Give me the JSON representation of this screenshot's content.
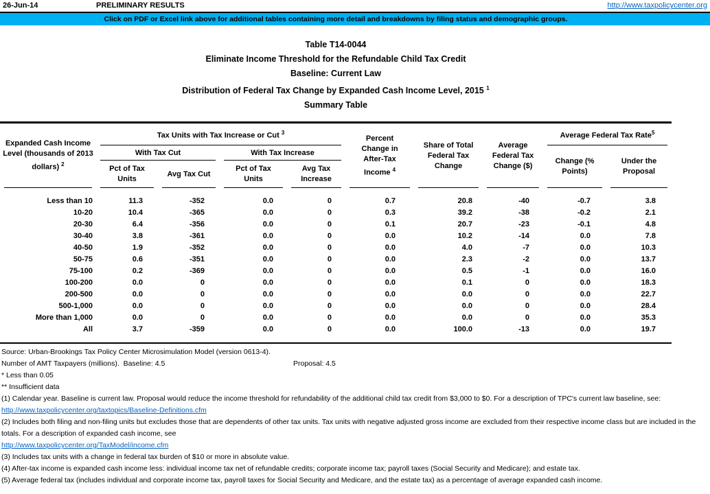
{
  "topbar": {
    "date": "26-Jun-14",
    "status": "PRELIMINARY RESULTS",
    "link": "http://www.taxpolicycenter.org"
  },
  "banner": {
    "text": "Click on PDF or Excel link above for additional tables containing more detail and breakdowns by filing status and demographic groups.",
    "bg_color": "#00B0F0"
  },
  "titles": {
    "line1": "Table T14-0044",
    "line2": "Eliminate Income Threshold for the Refundable Child Tax Credit",
    "line3": "Baseline: Current Law",
    "line4": "Distribution of Federal Tax Change by Expanded Cash Income Level, 2015",
    "line4_sup": "1",
    "line5": "Summary Table"
  },
  "table": {
    "col_income": {
      "text": "Expanded Cash Income Level (thousands of 2013 dollars)",
      "sup": "2"
    },
    "group_units": {
      "text": "Tax Units with Tax Increase or Cut",
      "sup": "3"
    },
    "group_cut": "With Tax Cut",
    "group_increase": "With Tax Increase",
    "col_pct_cut": "Pct of Tax Units",
    "col_avg_cut": "Avg Tax Cut",
    "col_pct_inc": "Pct of Tax Units",
    "col_avg_inc": "Avg Tax Increase",
    "col_pct_change": {
      "text": "Percent Change in After-Tax Income",
      "sup": "4"
    },
    "col_share": "Share of Total Federal Tax Change",
    "col_avg_change": "Average Federal Tax Change ($)",
    "group_rate": {
      "text": "Average Federal Tax Rate",
      "sup": "5"
    },
    "col_rate_change": "Change (% Points)",
    "col_rate_proposal": "Under the Proposal",
    "rows": [
      {
        "label": "Less than 10",
        "values": [
          "11.3",
          "-352",
          "0.0",
          "0",
          "0.7",
          "20.8",
          "-40",
          "-0.7",
          "3.8"
        ]
      },
      {
        "label": "10-20",
        "values": [
          "10.4",
          "-365",
          "0.0",
          "0",
          "0.3",
          "39.2",
          "-38",
          "-0.2",
          "2.1"
        ]
      },
      {
        "label": "20-30",
        "values": [
          "6.4",
          "-356",
          "0.0",
          "0",
          "0.1",
          "20.7",
          "-23",
          "-0.1",
          "4.8"
        ]
      },
      {
        "label": "30-40",
        "values": [
          "3.8",
          "-361",
          "0.0",
          "0",
          "0.0",
          "10.2",
          "-14",
          "0.0",
          "7.8"
        ]
      },
      {
        "label": "40-50",
        "values": [
          "1.9",
          "-352",
          "0.0",
          "0",
          "0.0",
          "4.0",
          "-7",
          "0.0",
          "10.3"
        ]
      },
      {
        "label": "50-75",
        "values": [
          "0.6",
          "-351",
          "0.0",
          "0",
          "0.0",
          "2.3",
          "-2",
          "0.0",
          "13.7"
        ]
      },
      {
        "label": "75-100",
        "values": [
          "0.2",
          "-369",
          "0.0",
          "0",
          "0.0",
          "0.5",
          "-1",
          "0.0",
          "16.0"
        ]
      },
      {
        "label": "100-200",
        "values": [
          "0.0",
          "0",
          "0.0",
          "0",
          "0.0",
          "0.1",
          "0",
          "0.0",
          "18.3"
        ]
      },
      {
        "label": "200-500",
        "values": [
          "0.0",
          "0",
          "0.0",
          "0",
          "0.0",
          "0.0",
          "0",
          "0.0",
          "22.7"
        ]
      },
      {
        "label": "500-1,000",
        "values": [
          "0.0",
          "0",
          "0.0",
          "0",
          "0.0",
          "0.0",
          "0",
          "0.0",
          "28.4"
        ]
      },
      {
        "label": "More than 1,000",
        "values": [
          "0.0",
          "0",
          "0.0",
          "0",
          "0.0",
          "0.0",
          "0",
          "0.0",
          "35.3"
        ]
      },
      {
        "label": "All",
        "values": [
          "3.7",
          "-359",
          "0.0",
          "0",
          "0.0",
          "100.0",
          "-13",
          "0.0",
          "19.7"
        ]
      }
    ]
  },
  "footer": {
    "source": "Source: Urban-Brookings Tax Policy Center Microsimulation Model (version 0613-4).",
    "amt_label": "Number of AMT Taxpayers (millions).  Baseline: 4.5",
    "amt_proposal": "Proposal: 4.5",
    "note_star": "* Less than 0.05",
    "note_double_star": "** Insufficient data",
    "fn1": "(1) Calendar year. Baseline is current law. Proposal would reduce the income threshold for refundability of the additional child tax credit from $3,000 to $0. For a description of TPC's current law baseline, see:",
    "link1": "http://www.taxpolicycenter.org/taxtopics/Baseline-Definitions.cfm",
    "fn2": "(2) Includes both filing and non-filing units but excludes those that are dependents of other tax units. Tax units with negative adjusted gross income are excluded from their respective income class but are included in the totals. For a description of expanded cash income, see",
    "link2": "http://www.taxpolicycenter.org/TaxModel/income.cfm",
    "fn3": "(3) Includes tax units with a change in federal tax burden of $10 or more in absolute value.",
    "fn4": "(4) After-tax income is expanded cash income less: individual income tax net of refundable credits; corporate income tax; payroll taxes (Social Security and Medicare); and estate tax.",
    "fn5": "(5) Average federal tax (includes individual and corporate income tax, payroll taxes for Social Security and Medicare, and the estate tax) as a percentage of average expanded cash income."
  }
}
